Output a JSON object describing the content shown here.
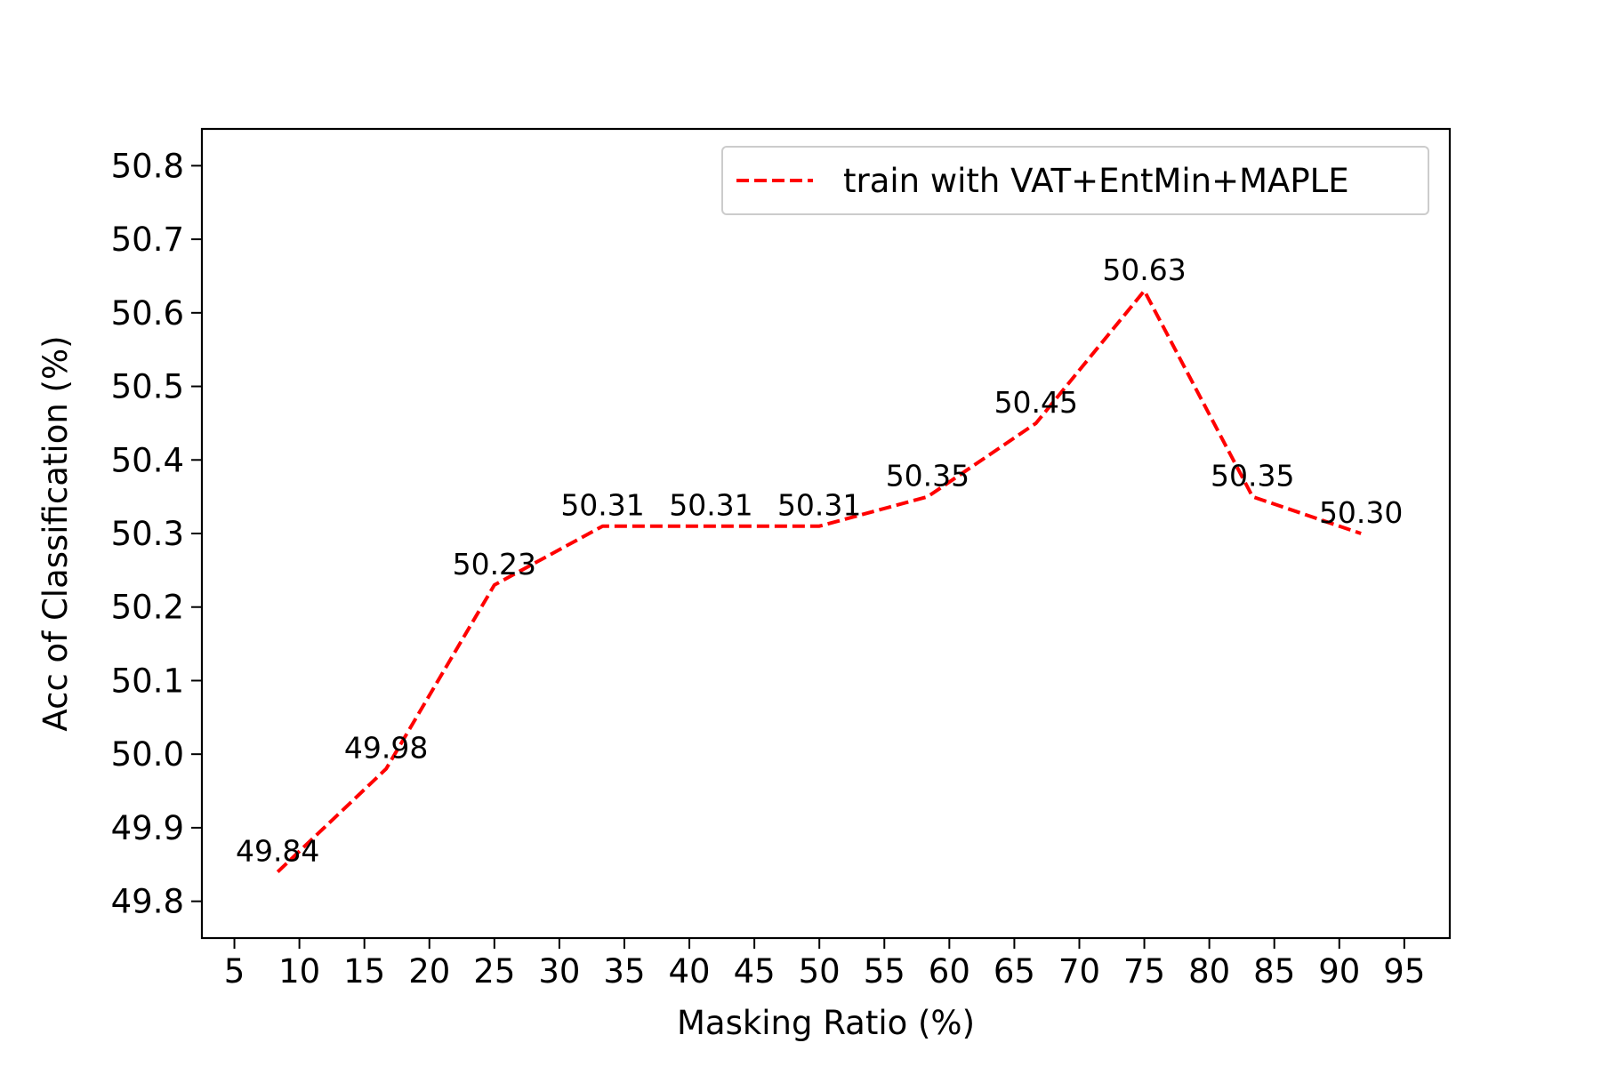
{
  "chart_data": {
    "type": "line",
    "title": "",
    "xlabel": "Masking Ratio (%)",
    "ylabel": "Acc of Classification (%)",
    "x_ticks": [
      "5",
      "10",
      "15",
      "20",
      "25",
      "30",
      "35",
      "40",
      "45",
      "50",
      "55",
      "60",
      "65",
      "70",
      "75",
      "80",
      "85",
      "90",
      "95"
    ],
    "y_ticks": [
      "49.8",
      "49.9",
      "50.0",
      "50.1",
      "50.2",
      "50.3",
      "50.4",
      "50.5",
      "50.6",
      "50.7",
      "50.8"
    ],
    "xlim": [
      2.5,
      98.5
    ],
    "ylim": [
      49.75,
      50.85
    ],
    "legend_position": "top-right",
    "grid": false,
    "series": [
      {
        "name": "train with VAT+EntMin+MAPLE",
        "color": "#ff0000",
        "line_style": "dashed",
        "x": [
          8.33,
          16.67,
          25,
          33.33,
          41.67,
          50,
          58.33,
          66.67,
          75,
          83.33,
          91.67
        ],
        "values": [
          49.84,
          49.98,
          50.23,
          50.31,
          50.31,
          50.31,
          50.35,
          50.45,
          50.63,
          50.35,
          50.3
        ],
        "labels": [
          "49.84",
          "49.98",
          "50.23",
          "50.31",
          "50.31",
          "50.31",
          "50.35",
          "50.45",
          "50.63",
          "50.35",
          "50.30"
        ]
      }
    ]
  }
}
